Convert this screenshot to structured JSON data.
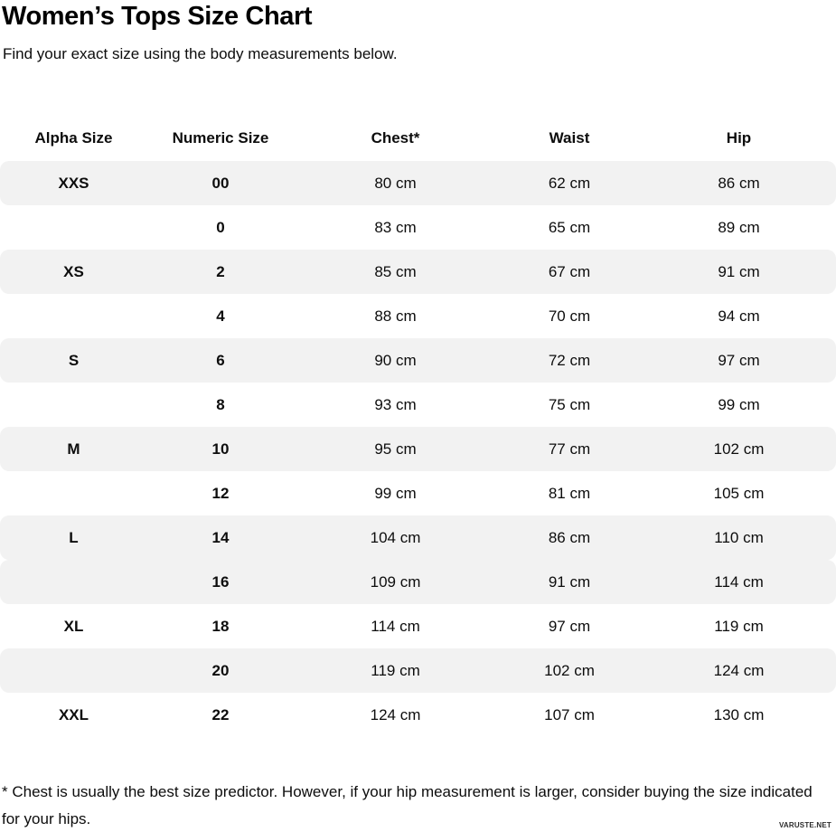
{
  "page": {
    "title": "Women’s Tops Size Chart",
    "subtitle": "Find your exact size using the body measurements below.",
    "footnote": "* Chest is usually the best size predictor. However, if your hip measurement is larger, consider buying the size indicated for your hips.",
    "watermark": "VARUSTE.NET"
  },
  "table": {
    "columns": [
      "Alpha Size",
      "Numeric Size",
      "Chest*",
      "Waist",
      "Hip"
    ],
    "rows": [
      {
        "alpha": "XXS",
        "numeric": "00",
        "chest": "80 cm",
        "waist": "62 cm",
        "hip": "86 cm",
        "shaded": true
      },
      {
        "alpha": "",
        "numeric": "0",
        "chest": "83 cm",
        "waist": "65 cm",
        "hip": "89 cm",
        "shaded": false
      },
      {
        "alpha": "XS",
        "numeric": "2",
        "chest": "85 cm",
        "waist": "67 cm",
        "hip": "91 cm",
        "shaded": true
      },
      {
        "alpha": "",
        "numeric": "4",
        "chest": "88 cm",
        "waist": "70 cm",
        "hip": "94 cm",
        "shaded": false
      },
      {
        "alpha": "S",
        "numeric": "6",
        "chest": "90 cm",
        "waist": "72 cm",
        "hip": "97 cm",
        "shaded": true
      },
      {
        "alpha": "",
        "numeric": "8",
        "chest": "93 cm",
        "waist": "75 cm",
        "hip": "99 cm",
        "shaded": false
      },
      {
        "alpha": "M",
        "numeric": "10",
        "chest": "95 cm",
        "waist": "77 cm",
        "hip": "102 cm",
        "shaded": true
      },
      {
        "alpha": "",
        "numeric": "12",
        "chest": "99 cm",
        "waist": "81 cm",
        "hip": "105 cm",
        "shaded": false
      },
      {
        "alpha": "L",
        "numeric": "14",
        "chest": "104 cm",
        "waist": "86 cm",
        "hip": "110 cm",
        "shaded": true
      },
      {
        "alpha": "",
        "numeric": "16",
        "chest": "109 cm",
        "waist": "91 cm",
        "hip": "114 cm",
        "shaded": true
      },
      {
        "alpha": "XL",
        "numeric": "18",
        "chest": "114 cm",
        "waist": "97 cm",
        "hip": "119 cm",
        "shaded": false
      },
      {
        "alpha": "",
        "numeric": "20",
        "chest": "119 cm",
        "waist": "102 cm",
        "hip": "124 cm",
        "shaded": true
      },
      {
        "alpha": "XXL",
        "numeric": "22",
        "chest": "124 cm",
        "waist": "107 cm",
        "hip": "130 cm",
        "shaded": false
      }
    ]
  },
  "colors": {
    "shaded_row": "#f2f2f2",
    "text": "#0d0d0d"
  }
}
